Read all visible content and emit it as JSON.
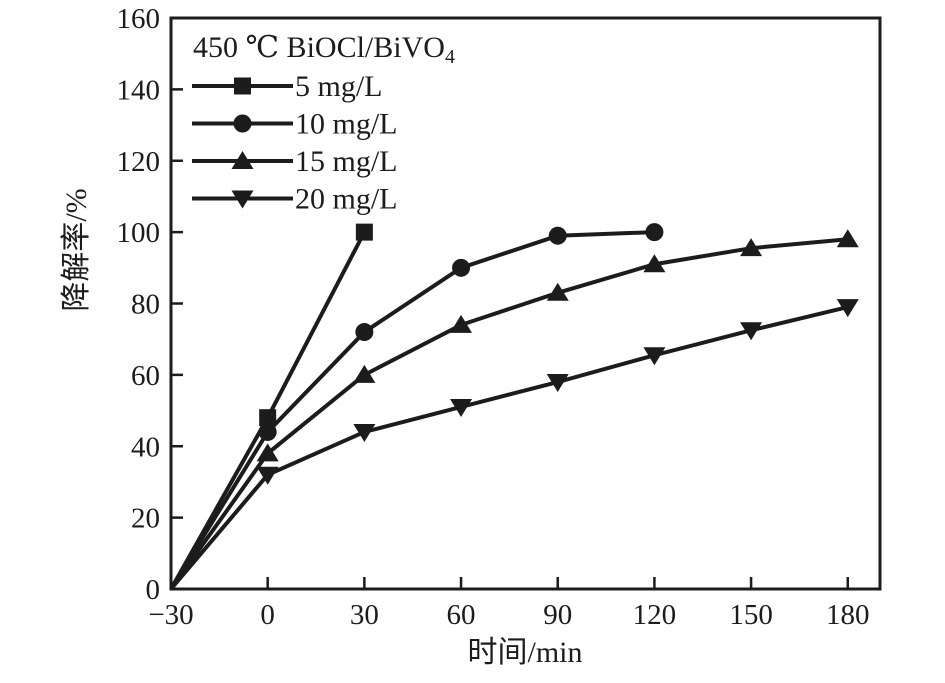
{
  "figure": {
    "background": "#ffffff",
    "ink_color": "#1c1c1c"
  },
  "chart_data": {
    "type": "line",
    "legend_title": "450 ℃ BiOCl/BiVO",
    "legend_title_sub": "4",
    "xlabel": "时间/min",
    "ylabel": "降解率/%",
    "xlim": [
      -30,
      190
    ],
    "ylim": [
      0,
      160
    ],
    "xticks": [
      -30,
      0,
      30,
      60,
      90,
      120,
      150,
      180
    ],
    "yticks": [
      0,
      20,
      40,
      60,
      80,
      100,
      120,
      140,
      160
    ],
    "grid": false,
    "legend_position": "top-left",
    "line_color": "#1c1c1c",
    "series": [
      {
        "name": "5 mg/L",
        "marker": "square",
        "x": [
          -30,
          0,
          30
        ],
        "y": [
          0,
          48,
          100
        ]
      },
      {
        "name": "10 mg/L",
        "marker": "circle",
        "x": [
          -30,
          0,
          30,
          60,
          90,
          120
        ],
        "y": [
          0,
          44,
          72,
          90,
          99,
          100
        ]
      },
      {
        "name": "15 mg/L",
        "marker": "triangle-up",
        "x": [
          -30,
          0,
          30,
          60,
          90,
          120,
          150,
          180
        ],
        "y": [
          0,
          38,
          60,
          74,
          83,
          91,
          95.5,
          98
        ]
      },
      {
        "name": "20 mg/L",
        "marker": "triangle-down",
        "x": [
          -30,
          0,
          30,
          60,
          90,
          120,
          150,
          180
        ],
        "y": [
          0,
          32,
          44,
          51,
          58,
          65.5,
          72.5,
          79
        ]
      }
    ]
  }
}
